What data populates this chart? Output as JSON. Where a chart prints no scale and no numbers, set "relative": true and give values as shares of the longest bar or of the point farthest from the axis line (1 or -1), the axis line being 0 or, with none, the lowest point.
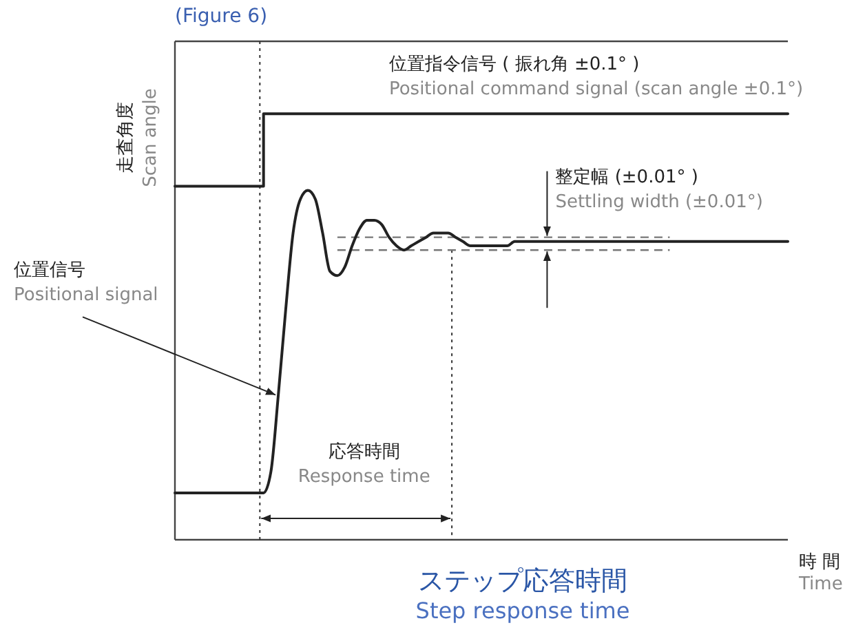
{
  "chart_data": {
    "type": "line",
    "relative": true,
    "title": "ステップ応答時間",
    "subtitle": "Step response time",
    "xlabel": "時 間\nTime",
    "ylabel": "走査角度\nScan angle",
    "categories": [
      null,
      null,
      null,
      null,
      null,
      null,
      null,
      null,
      null,
      null,
      null,
      null,
      null,
      null,
      null,
      null,
      null,
      null,
      null,
      null,
      null,
      null,
      null,
      null,
      null,
      null,
      null,
      null,
      null,
      null,
      null,
      null,
      null,
      null,
      null,
      null,
      null,
      null,
      null,
      null,
      null,
      null,
      null,
      null,
      null,
      null,
      null,
      null,
      null,
      null,
      null,
      null,
      null,
      null,
      null,
      null,
      null,
      null,
      null,
      null,
      null,
      null,
      null,
      null,
      null,
      null,
      null,
      null,
      null,
      null,
      null,
      null,
      null,
      null,
      null,
      null,
      null,
      null,
      null,
      null,
      null,
      null,
      null,
      null
    ],
    "series": [
      {
        "name": "位置指令信号 ( 振れ角 ±0.1° )\nPositional command signal (scan angle ±0.1°)",
        "type": "step",
        "color": "#222222",
        "values": [
          0.83,
          0.83,
          0.83,
          0.83,
          0.83,
          0.83,
          0.83,
          0.83,
          0.83,
          0.83,
          0.83,
          0.83,
          1,
          1,
          1,
          1,
          1,
          1,
          1,
          1,
          1,
          1,
          1,
          1,
          1,
          1,
          1,
          1,
          1,
          1,
          1,
          1,
          1,
          1,
          1,
          1,
          1,
          1,
          1,
          1,
          1,
          1,
          1,
          1,
          1,
          1,
          1,
          1,
          1,
          1,
          1,
          1,
          1,
          1,
          1,
          1,
          1,
          1,
          1,
          1,
          1,
          1,
          1,
          1,
          1,
          1,
          1,
          1,
          1,
          1,
          1,
          1,
          1,
          1,
          1,
          1,
          1,
          1,
          1,
          1,
          1,
          1,
          1,
          1
        ]
      },
      {
        "name": "位置信号\nPositional signal",
        "color": "#222222",
        "values": [
          0.11,
          0.11,
          0.11,
          0.11,
          0.11,
          0.11,
          0.11,
          0.11,
          0.11,
          0.11,
          0.11,
          0.11,
          0.11,
          0.16,
          0.34,
          0.54,
          0.72,
          0.8,
          0.82,
          0.8,
          0.72,
          0.63,
          0.62,
          0.64,
          0.69,
          0.73,
          0.75,
          0.75,
          0.74,
          0.71,
          0.69,
          0.68,
          0.69,
          0.7,
          0.71,
          0.72,
          0.72,
          0.72,
          0.71,
          0.7,
          0.69,
          0.69,
          0.69,
          0.69,
          0.69,
          0.69,
          0.7,
          0.7,
          0.7,
          0.7,
          0.7,
          0.7,
          0.7,
          0.7,
          0.7,
          0.7,
          0.7,
          0.7,
          0.7,
          0.7,
          0.7,
          0.7,
          0.7,
          0.7,
          0.7,
          0.7,
          0.7,
          0.7,
          0.7,
          0.7,
          0.7,
          0.7,
          0.7,
          0.7,
          0.7,
          0.7,
          0.7,
          0.7,
          0.7,
          0.7,
          0.7,
          0.7,
          0.7,
          0.7
        ]
      }
    ],
    "ref_lines": [
      {
        "axis": "y",
        "value": 0.71,
        "line_style": "dashed",
        "color": "#777777",
        "label": "整定幅 (±0.01° )\nSettling width (±0.01°)"
      },
      {
        "axis": "y",
        "value": 0.68,
        "line_style": "dashed",
        "color": "#777777"
      }
    ],
    "annotations": [
      "(Figure 6)",
      "応答時間\nResponse time"
    ],
    "marker": "none",
    "line_style": "solid"
  }
}
